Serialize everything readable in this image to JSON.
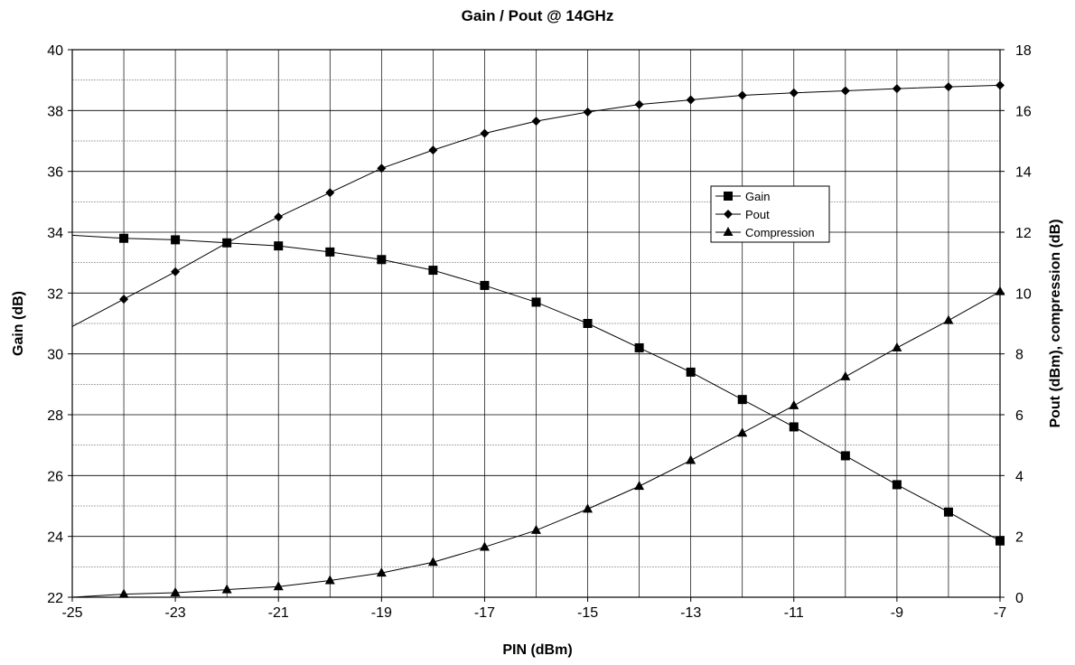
{
  "chart_data": {
    "type": "line",
    "title": "Gain / Pout @ 14GHz",
    "xlabel": "PIN (dBm)",
    "ylabel_left": "Gain (dB)",
    "ylabel_right": "Pout (dBm), compression (dB)",
    "xlim": [
      -25,
      -7
    ],
    "ylim_left": [
      22,
      40
    ],
    "ylim_right": [
      0,
      18
    ],
    "x_ticks": [
      "-25",
      "-23",
      "-21",
      "-19",
      "-17",
      "-15",
      "-13",
      "-11",
      "-9",
      "-7"
    ],
    "y_left_ticks": [
      "22",
      "24",
      "26",
      "28",
      "30",
      "32",
      "34",
      "36",
      "38",
      "40"
    ],
    "y_right_ticks": [
      "0",
      "2",
      "4",
      "6",
      "8",
      "10",
      "12",
      "14",
      "16",
      "18"
    ],
    "grid": true,
    "legend_position": "center-right",
    "x": [
      -25,
      -24,
      -23,
      -22,
      -21,
      -20,
      -19,
      -18,
      -17,
      -16,
      -15,
      -14,
      -13,
      -12,
      -11,
      -10,
      -9,
      -8,
      -7
    ],
    "series": [
      {
        "name": "Gain",
        "axis": "left",
        "marker": "square",
        "values": [
          33.9,
          33.8,
          33.75,
          33.65,
          33.55,
          33.35,
          33.1,
          32.75,
          32.25,
          31.7,
          31.0,
          30.2,
          29.4,
          28.5,
          27.6,
          26.65,
          25.7,
          24.8,
          23.85
        ],
        "markers_from_index": 1
      },
      {
        "name": "Pout",
        "axis": "right",
        "marker": "diamond",
        "values": [
          8.9,
          9.8,
          10.7,
          11.65,
          12.5,
          13.3,
          14.1,
          14.7,
          15.25,
          15.65,
          15.95,
          16.2,
          16.35,
          16.5,
          16.58,
          16.65,
          16.72,
          16.78,
          16.83
        ],
        "markers_from_index": 1
      },
      {
        "name": "Compression",
        "axis": "right",
        "marker": "triangle",
        "values": [
          0.0,
          0.1,
          0.15,
          0.25,
          0.35,
          0.55,
          0.8,
          1.15,
          1.65,
          2.2,
          2.9,
          3.65,
          4.5,
          5.4,
          6.3,
          7.25,
          8.2,
          9.1,
          10.05
        ],
        "markers_from_index": 1
      }
    ]
  }
}
